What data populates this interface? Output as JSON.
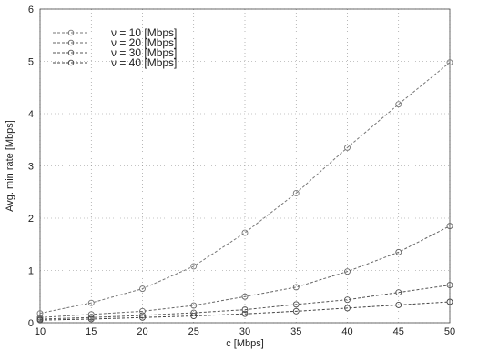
{
  "chart_data": {
    "type": "line",
    "title": "",
    "xlabel": "c [Mbps]",
    "ylabel": "Avg. min rate [Mbps]",
    "xlim": [
      10,
      50
    ],
    "ylim": [
      0,
      6
    ],
    "xticks": [
      10,
      15,
      20,
      25,
      30,
      35,
      40,
      45,
      50
    ],
    "yticks": [
      0,
      1,
      2,
      3,
      4,
      5,
      6
    ],
    "grid": true,
    "legend_position": "top-left",
    "x": [
      10,
      15,
      20,
      25,
      30,
      35,
      40,
      45,
      50
    ],
    "series": [
      {
        "name": "ν = 10 [Mbps]",
        "color": "#777777",
        "values": [
          0.18,
          0.38,
          0.65,
          1.08,
          1.72,
          2.48,
          3.35,
          4.18,
          4.98
        ]
      },
      {
        "name": "ν = 20 [Mbps]",
        "color": "#666666",
        "values": [
          0.1,
          0.16,
          0.22,
          0.33,
          0.5,
          0.68,
          0.98,
          1.35,
          1.85
        ]
      },
      {
        "name": "ν = 30 [Mbps]",
        "color": "#555555",
        "values": [
          0.07,
          0.1,
          0.14,
          0.19,
          0.25,
          0.35,
          0.44,
          0.58,
          0.72
        ]
      },
      {
        "name": "ν = 40 [Mbps]",
        "color": "#444444",
        "values": [
          0.05,
          0.07,
          0.1,
          0.13,
          0.17,
          0.22,
          0.28,
          0.34,
          0.4
        ]
      }
    ]
  }
}
